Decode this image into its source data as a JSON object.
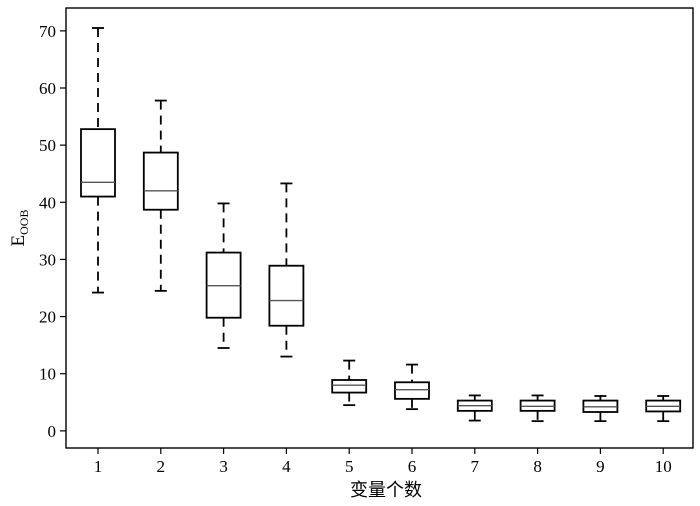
{
  "chart_data": {
    "type": "boxplot",
    "xlabel": "变量个数",
    "ylabel": {
      "main": "E",
      "subscript": "OOB"
    },
    "ylim": [
      -3,
      74
    ],
    "yticks": [
      0,
      10,
      20,
      30,
      40,
      50,
      60,
      70
    ],
    "categories": [
      "1",
      "2",
      "3",
      "4",
      "5",
      "6",
      "7",
      "8",
      "9",
      "10"
    ],
    "boxes": [
      {
        "category": "1",
        "min": 24.2,
        "q1": 41.0,
        "median": 43.5,
        "q3": 52.8,
        "max": 70.5
      },
      {
        "category": "2",
        "min": 24.5,
        "q1": 38.7,
        "median": 42.0,
        "q3": 48.7,
        "max": 57.8
      },
      {
        "category": "3",
        "min": 14.5,
        "q1": 19.8,
        "median": 25.4,
        "q3": 31.2,
        "max": 39.8
      },
      {
        "category": "4",
        "min": 13.0,
        "q1": 18.4,
        "median": 22.8,
        "q3": 28.9,
        "max": 43.3
      },
      {
        "category": "5",
        "min": 4.5,
        "q1": 6.7,
        "median": 8.0,
        "q3": 8.9,
        "max": 12.3
      },
      {
        "category": "6",
        "min": 3.8,
        "q1": 5.6,
        "median": 7.2,
        "q3": 8.5,
        "max": 11.6
      },
      {
        "category": "7",
        "min": 1.8,
        "q1": 3.5,
        "median": 4.4,
        "q3": 5.3,
        "max": 6.2
      },
      {
        "category": "8",
        "min": 1.7,
        "q1": 3.5,
        "median": 4.3,
        "q3": 5.3,
        "max": 6.2
      },
      {
        "category": "9",
        "min": 1.7,
        "q1": 3.3,
        "median": 4.2,
        "q3": 5.3,
        "max": 6.1
      },
      {
        "category": "10",
        "min": 1.7,
        "q1": 3.4,
        "median": 4.3,
        "q3": 5.3,
        "max": 6.1
      }
    ],
    "colors": {
      "box": "#000000",
      "median": "#555555",
      "whisker": "#000000"
    },
    "grid": false,
    "legend": "none"
  }
}
